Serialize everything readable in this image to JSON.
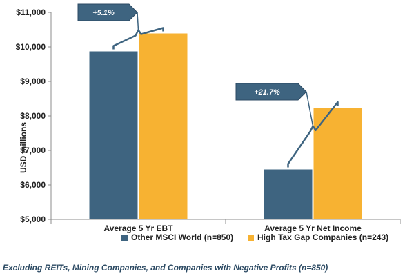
{
  "chart_data": {
    "type": "bar",
    "categories": [
      "Average 5 Yr EBT",
      "Average 5 Yr Net Income"
    ],
    "series": [
      {
        "name": "Other MSCI World (n=850)",
        "color": "#3e6480",
        "values": [
          9870,
          6450
        ]
      },
      {
        "name": "High Tax Gap Companies (n=243)",
        "color": "#f7b232",
        "values": [
          10390,
          8240
        ]
      }
    ],
    "ylabel": "USD millions",
    "ylim": [
      5000,
      11000
    ],
    "yticks": [
      5000,
      6000,
      7000,
      8000,
      9000,
      10000,
      11000
    ],
    "ytick_labels": [
      "$5,000",
      "$6,000",
      "$7,000",
      "$8,000",
      "$9,000",
      "$10,000",
      "$11,000"
    ],
    "grid": false,
    "legend_position": "bottom",
    "annotations": [
      {
        "text": "+5.1%",
        "category_index": 0
      },
      {
        "text": "+21.7%",
        "category_index": 1
      }
    ]
  },
  "footnote": "Excluding REITs, Mining Companies, and Companies with Negative Profits (n=850)",
  "colors": {
    "axis": "#8c8c8c",
    "callout_fill": "#3e6480",
    "bracket": "#3e6480"
  }
}
